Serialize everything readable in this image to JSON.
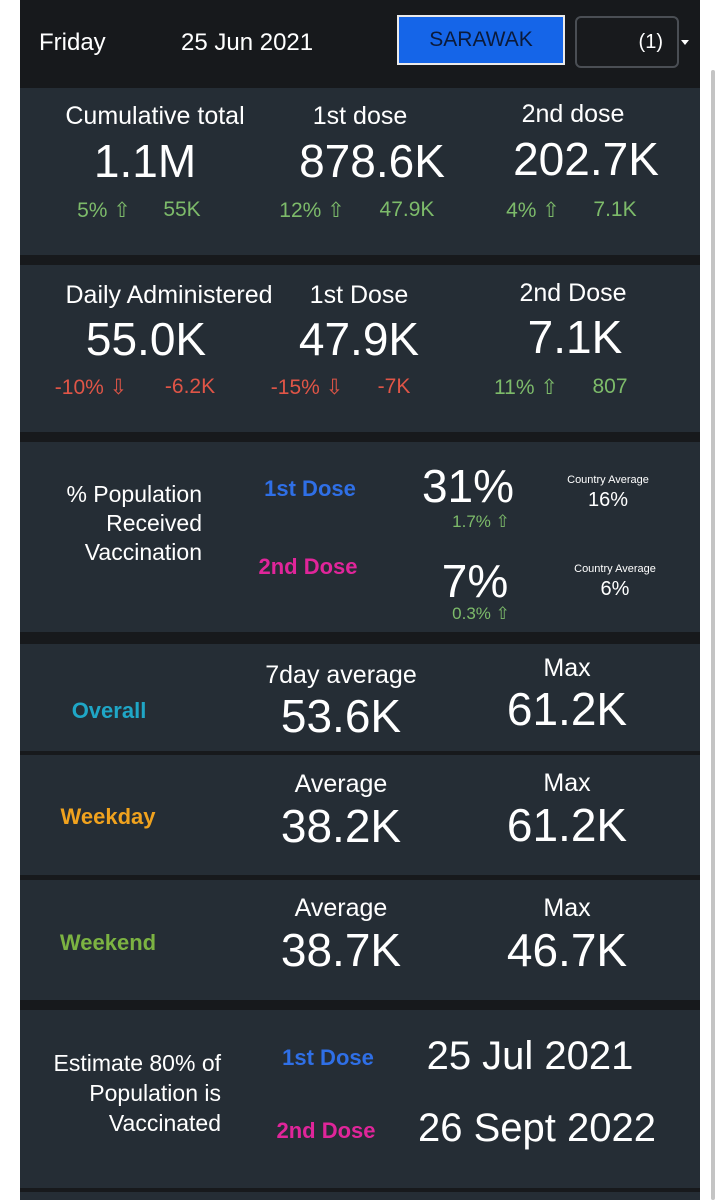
{
  "header": {
    "day": "Friday",
    "date": "25 Jun 2021",
    "state_button": "SARAWAK",
    "select_value": "(1)"
  },
  "cumulative": {
    "total_label": "Cumulative total",
    "total_value": "1.1M",
    "total_pct": "5% ⇧",
    "total_delta": "55K",
    "dose1_label": "1st dose",
    "dose1_value": "878.6K",
    "dose1_pct": "12% ⇧",
    "dose1_delta": "47.9K",
    "dose2_label": "2nd dose",
    "dose2_value": "202.7K",
    "dose2_pct": "4% ⇧",
    "dose2_delta": "7.1K"
  },
  "daily": {
    "total_label": "Daily Administered",
    "total_value": "55.0K",
    "total_pct": "-10% ⇩",
    "total_delta": "-6.2K",
    "dose1_label": "1st Dose",
    "dose1_value": "47.9K",
    "dose1_pct": "-15% ⇩",
    "dose1_delta": "-7K",
    "dose2_label": "2nd Dose",
    "dose2_value": "7.1K",
    "dose2_pct": "11% ⇧",
    "dose2_delta": "807"
  },
  "population": {
    "title_line1": "% Population",
    "title_line2": "Received",
    "title_line3": "Vaccination",
    "dose1_label": "1st Dose",
    "dose1_value": "31%",
    "dose1_change": "1.7% ⇧",
    "dose1_country_label": "Country Average",
    "dose1_country_value": "16%",
    "dose2_label": "2nd Dose",
    "dose2_value": "7%",
    "dose2_change": "0.3% ⇧",
    "dose2_country_label": "Country Average",
    "dose2_country_value": "6%"
  },
  "overall": {
    "label": "Overall",
    "avg_label": "7day average",
    "avg_value": "53.6K",
    "max_label": "Max",
    "max_value": "61.2K"
  },
  "weekday": {
    "label": "Weekday",
    "avg_label": "Average",
    "avg_value": "38.2K",
    "max_label": "Max",
    "max_value": "61.2K"
  },
  "weekend": {
    "label": "Weekend",
    "avg_label": "Average",
    "avg_value": "38.7K",
    "max_label": "Max",
    "max_value": "46.7K"
  },
  "estimate": {
    "title_line1": "Estimate 80% of",
    "title_line2": "Population is",
    "title_line3": "Vaccinated",
    "dose1_label": "1st Dose",
    "dose1_date": "25 Jul 2021",
    "dose2_label": "2nd Dose",
    "dose2_date": "26 Sept 2022"
  },
  "colors": {
    "background": "#17191c",
    "panel": "#252d35",
    "positive": "#7dbb6a",
    "negative": "#e05547",
    "dose1": "#2f6fe6",
    "dose2": "#e0259a",
    "overall": "#1fa6c6",
    "weekday": "#f0a21e",
    "weekend": "#7cb342",
    "state_button": "#1565e8"
  },
  "icons": {
    "up": "arrow-up-icon",
    "down": "arrow-down-icon",
    "caret": "chevron-down-icon"
  }
}
